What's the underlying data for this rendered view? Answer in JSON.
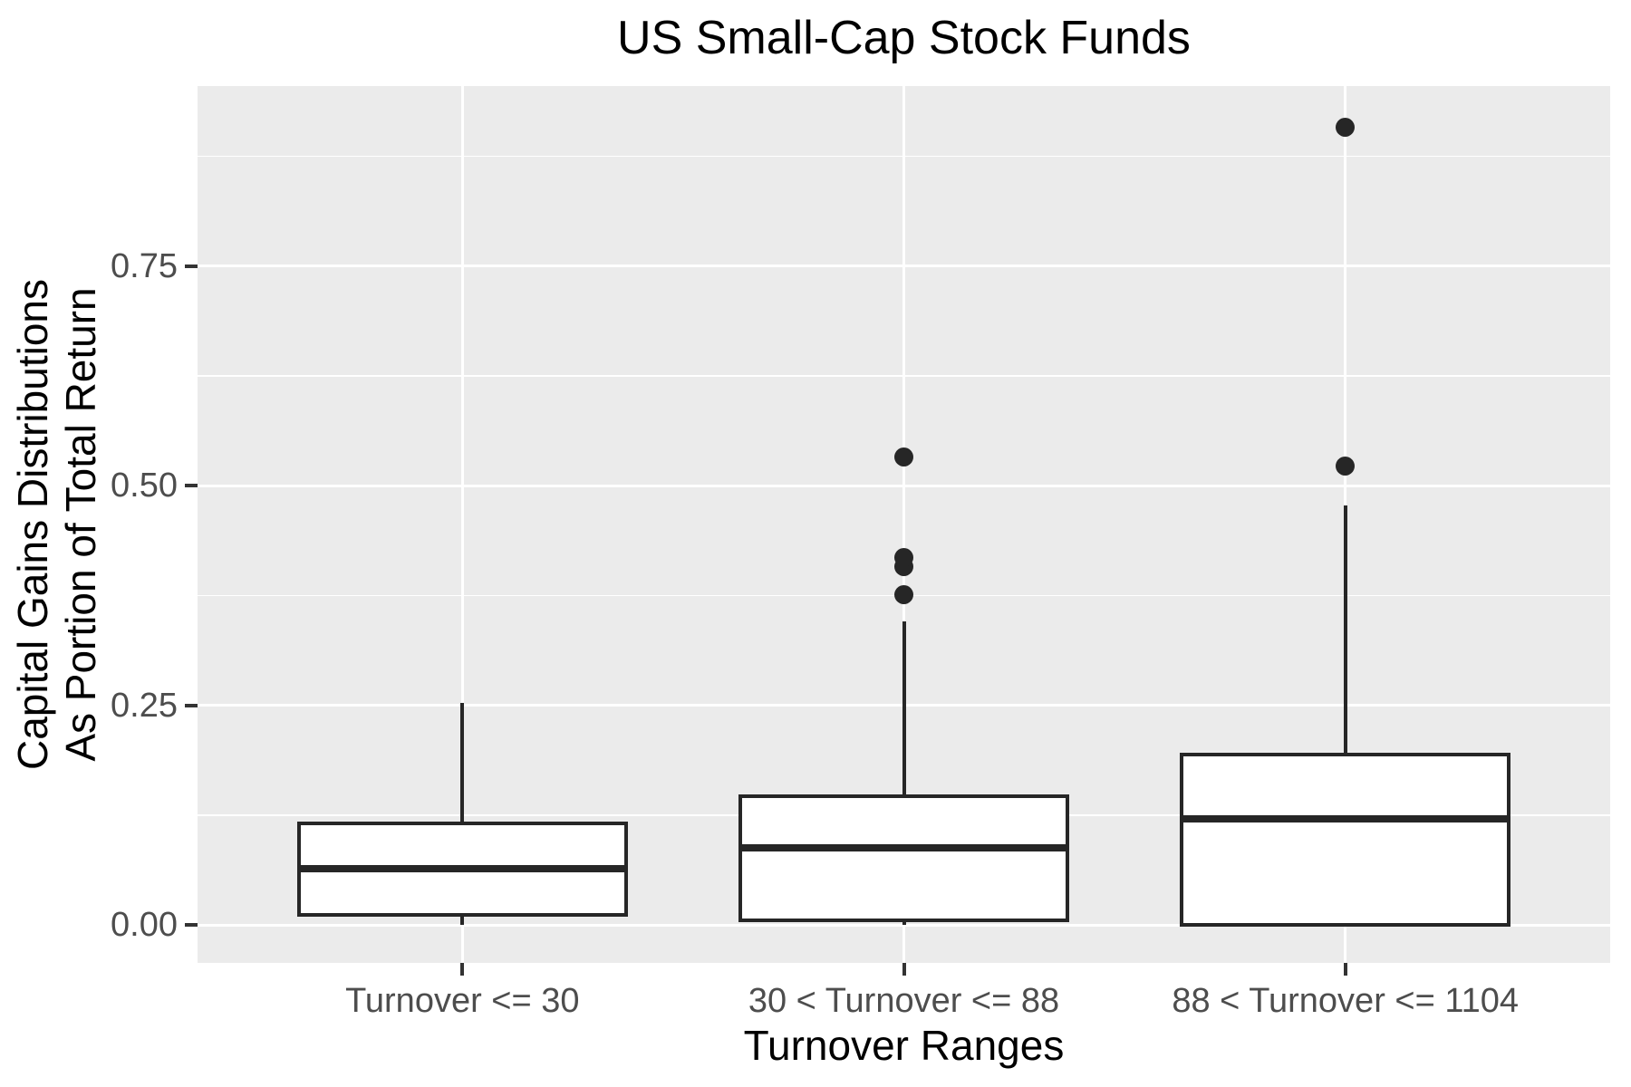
{
  "colors": {
    "panel_background": "#EBEBEB",
    "gridline": "#FFFFFF",
    "box_stroke": "#262626",
    "box_fill": "#FFFFFF",
    "outlier": "#262626",
    "tick_mark": "#333333",
    "axis_text": "#4D4D4D",
    "title_text": "#000000"
  },
  "chart_data": {
    "type": "boxplot",
    "title": "US Small-Cap Stock Funds",
    "xlabel": "Turnover Ranges",
    "ylabel_lines": [
      "Capital Gains Distributions",
      "As Portion of Total Return"
    ],
    "ylabel": "Capital Gains Distributions As Portion of Total Return",
    "categories": [
      "Turnover <= 30",
      "30 < Turnover <= 88",
      "88 < Turnover <= 1104"
    ],
    "y_ticks": [
      "0.00",
      "0.25",
      "0.50",
      "0.75"
    ],
    "y_tick_values": [
      0,
      0.25,
      0.5,
      0.75
    ],
    "y_minor_interval": 0.125,
    "ylim": [
      -0.043,
      0.955
    ],
    "grid": "horizontal major+minor white lines, vertical major white line per category",
    "legend_position": "none",
    "series": [
      {
        "category": "Turnover <= 30",
        "min": 0.0,
        "q1": 0.012,
        "median": 0.064,
        "q3": 0.116,
        "max": 0.253,
        "outliers": []
      },
      {
        "category": "30 < Turnover <= 88",
        "min": 0.0,
        "q1": 0.005,
        "median": 0.088,
        "q3": 0.147,
        "max": 0.346,
        "outliers": [
          0.376,
          0.408,
          0.418,
          0.533
        ]
      },
      {
        "category": "88 < Turnover <= 1104",
        "min": 0.0,
        "q1": 0.0,
        "median": 0.121,
        "q3": 0.194,
        "max": 0.478,
        "outliers": [
          0.522,
          0.908
        ]
      }
    ]
  }
}
